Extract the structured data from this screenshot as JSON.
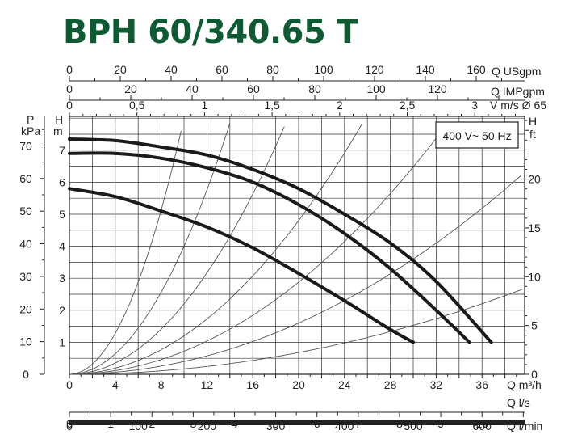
{
  "chart_data": {
    "type": "line",
    "title": "BPH 60/340.65 T",
    "legend_box": "400 V~ 50 Hz",
    "grid": true,
    "xlim": [
      0,
      39
    ],
    "ylim_m": [
      0,
      7.8
    ],
    "x_axis_bottom": {
      "label": "Q m³/h",
      "ticks": [
        "0",
        "4",
        "8",
        "12",
        "16",
        "20",
        "24",
        "28",
        "32",
        "36"
      ]
    },
    "ls_axis": {
      "label": "Q l/s",
      "ticks": [
        "0",
        "1",
        "2",
        "3",
        "4",
        "5",
        "6",
        "7",
        "8",
        "9",
        "10"
      ]
    },
    "lmin_axis": {
      "label": "Q l/min",
      "ticks": [
        "0",
        "100",
        "200",
        "300",
        "400",
        "500",
        "600"
      ]
    },
    "usgpm_axis": {
      "label": "Q USgpm",
      "ticks": [
        "0",
        "20",
        "40",
        "60",
        "80",
        "100",
        "120",
        "140",
        "160"
      ]
    },
    "impgpm_axis": {
      "label": "Q IMPgpm",
      "ticks": [
        "0",
        "20",
        "40",
        "60",
        "80",
        "100",
        "120"
      ]
    },
    "velocity_axis": {
      "label": "V m/s Ø 65",
      "ticks": [
        "0",
        "0,5",
        "1",
        "1,5",
        "2",
        "2,5",
        "3"
      ]
    },
    "left_m_axis": {
      "label_top": "H",
      "label_bottom": "m",
      "ticks": [
        "1",
        "2",
        "3",
        "4",
        "5",
        "6",
        "7"
      ]
    },
    "left_kpa_axis": {
      "label_top": "P",
      "label_bottom": "kPa",
      "ticks": [
        "0",
        "10",
        "20",
        "30",
        "40",
        "50",
        "60",
        "70"
      ]
    },
    "right_ft_axis": {
      "label_top": "H",
      "label_bottom": "ft",
      "ticks": [
        "0",
        "5",
        "10",
        "15",
        "20"
      ]
    },
    "series": [
      {
        "x": [
          0,
          4,
          8,
          12,
          16,
          20,
          24,
          28,
          32,
          36.8
        ],
        "y": [
          7.35,
          7.3,
          7.1,
          6.85,
          6.4,
          5.8,
          5.0,
          4.1,
          2.9,
          1.0
        ]
      },
      {
        "x": [
          0,
          4,
          8,
          12,
          16,
          20,
          24,
          28,
          32,
          34.9
        ],
        "y": [
          6.9,
          6.9,
          6.75,
          6.45,
          6.0,
          5.3,
          4.4,
          3.3,
          2.0,
          1.0
        ]
      },
      {
        "x": [
          0,
          4,
          8,
          12,
          16,
          20,
          24,
          28,
          30.0
        ],
        "y": [
          5.8,
          5.55,
          5.1,
          4.6,
          3.95,
          3.15,
          2.3,
          1.4,
          1.0
        ]
      }
    ],
    "system_curves": {
      "k": [
        0.08,
        0.04,
        0.022,
        0.012,
        0.0072,
        0.004,
        0.0017
      ]
    }
  }
}
